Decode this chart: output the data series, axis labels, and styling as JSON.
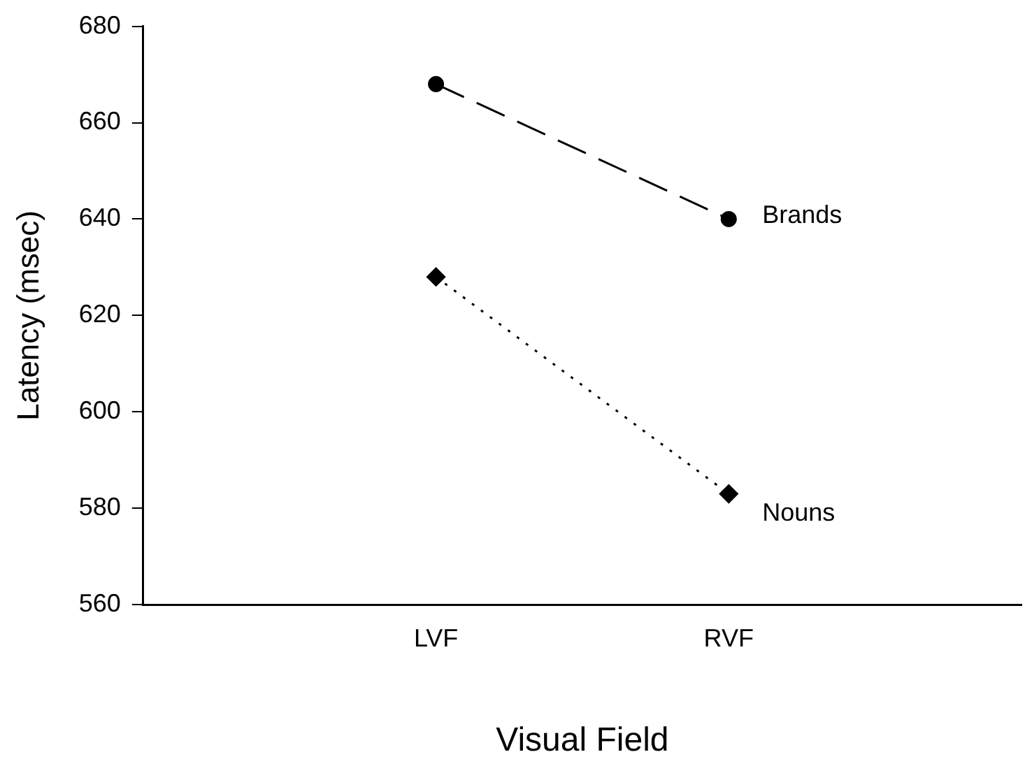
{
  "chart_data": {
    "type": "line",
    "xlabel": "Visual Field",
    "ylabel": "Latency (msec)",
    "categories": [
      "LVF",
      "RVF"
    ],
    "ylim": [
      560,
      680
    ],
    "yticks": [
      560,
      580,
      600,
      620,
      640,
      660,
      680
    ],
    "grid": false,
    "legend": false,
    "series": [
      {
        "name": "Brands",
        "color": "#000000",
        "values": [
          668,
          640
        ],
        "marker": "circle",
        "line_style": "dashed"
      },
      {
        "name": "Nouns",
        "color": "#000000",
        "values": [
          628,
          583
        ],
        "marker": "diamond",
        "line_style": "dotted"
      }
    ]
  }
}
